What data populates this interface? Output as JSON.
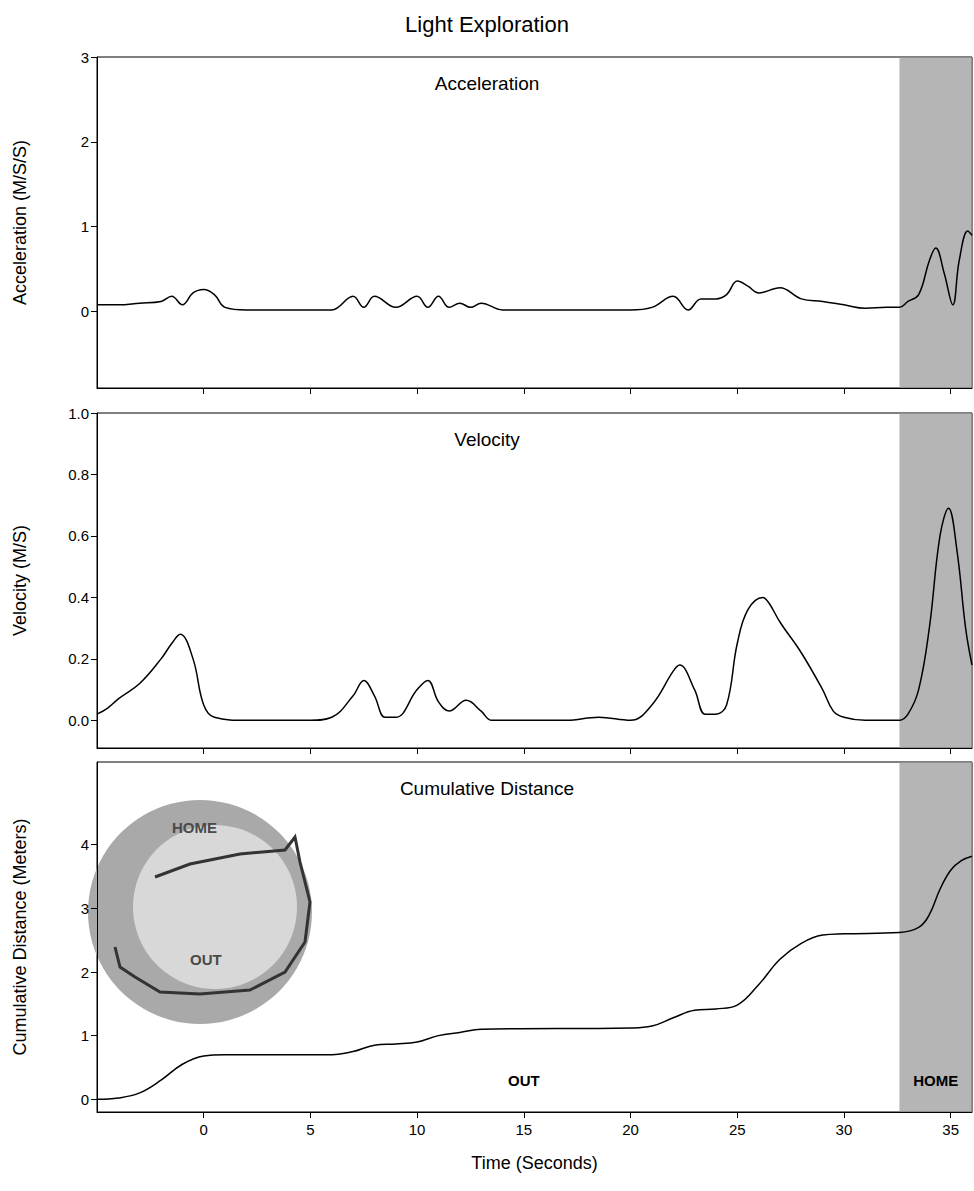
{
  "title": "Light Exploration",
  "chart_data": [
    {
      "type": "line",
      "title": "Acceleration",
      "y_label": "Acceleration (M/S/S)",
      "color": "#000000",
      "grid": false,
      "tick_labels": "y",
      "x": [
        -5,
        -4,
        -3,
        -2,
        -1.5,
        -1,
        -0.5,
        0,
        0.5,
        1,
        2,
        5,
        6,
        7,
        7.5,
        8,
        9,
        10,
        10.5,
        11,
        11.5,
        12,
        12.5,
        13,
        14,
        20,
        21,
        22,
        22.7,
        23.3,
        24,
        24.5,
        25,
        25.5,
        26,
        27,
        28,
        29,
        30,
        31,
        32,
        32.6,
        33,
        33.5,
        34,
        34.3,
        34.7,
        35.1,
        35.4,
        35.8,
        36
      ],
      "values": [
        0.08,
        0.08,
        0.1,
        0.12,
        0.18,
        0.08,
        0.22,
        0.26,
        0.2,
        0.05,
        0.02,
        0.02,
        0.02,
        0.18,
        0.05,
        0.18,
        0.05,
        0.18,
        0.05,
        0.18,
        0.05,
        0.1,
        0.05,
        0.1,
        0.02,
        0.02,
        0.05,
        0.18,
        0.02,
        0.15,
        0.15,
        0.2,
        0.36,
        0.3,
        0.22,
        0.28,
        0.15,
        0.12,
        0.08,
        0.04,
        0.05,
        0.05,
        0.12,
        0.2,
        0.6,
        0.75,
        0.45,
        0.08,
        0.6,
        0.95,
        0.9
      ],
      "xlim": [
        -5,
        36
      ],
      "xticks": [
        0,
        5,
        10,
        15,
        20,
        25,
        30,
        35
      ],
      "ylim": [
        -0.9,
        3
      ],
      "yticks": [
        0,
        1,
        2,
        3
      ],
      "shaded": {
        "from": 32.6,
        "to": 36
      }
    },
    {
      "type": "line",
      "title": "Velocity",
      "y_label": "Velocity (M/S)",
      "color": "#000000",
      "grid": false,
      "tick_labels": "y",
      "x": [
        -5,
        -4.5,
        -4,
        -3,
        -2,
        -1.5,
        -1.1,
        -0.5,
        0,
        0.5,
        2,
        5,
        6,
        7,
        7.5,
        8,
        8.5,
        9,
        10,
        10.5,
        11,
        11.5,
        12.3,
        13,
        13.5,
        17,
        18.5,
        20,
        21,
        22,
        22.3,
        23,
        23.5,
        24,
        24.5,
        25,
        25.5,
        26.2,
        26.5,
        27,
        28,
        29,
        29.5,
        30,
        31,
        32.6,
        33,
        33.5,
        34,
        34.5,
        34.9,
        35.3,
        35.7,
        36
      ],
      "values": [
        0.02,
        0.04,
        0.07,
        0.12,
        0.2,
        0.25,
        0.28,
        0.2,
        0.05,
        0.01,
        0.0,
        0.0,
        0.01,
        0.08,
        0.13,
        0.08,
        0.01,
        0.01,
        0.1,
        0.13,
        0.06,
        0.03,
        0.065,
        0.03,
        0.0,
        0.0,
        0.01,
        0.0,
        0.05,
        0.16,
        0.18,
        0.1,
        0.02,
        0.02,
        0.05,
        0.25,
        0.36,
        0.4,
        0.38,
        0.32,
        0.22,
        0.1,
        0.03,
        0.01,
        0.0,
        0.0,
        0.02,
        0.1,
        0.3,
        0.6,
        0.69,
        0.55,
        0.3,
        0.18
      ],
      "xlim": [
        -5,
        36
      ],
      "xticks": [
        0,
        5,
        10,
        15,
        20,
        25,
        30,
        35
      ],
      "ylim": [
        -0.09,
        1.0
      ],
      "yticks": [
        {
          "value": 0,
          "label": "0.0"
        },
        {
          "value": 0.2,
          "label": "0.2"
        },
        {
          "value": 0.4,
          "label": "0.4"
        },
        {
          "value": 0.6,
          "label": "0.6"
        },
        {
          "value": 0.8,
          "label": "0.8"
        },
        {
          "value": 1.0,
          "label": "1.0"
        }
      ],
      "shaded": {
        "from": 32.6,
        "to": 36
      }
    },
    {
      "type": "line",
      "title": "Cumulative Distance",
      "y_label": "Cumulative Distance (Meters)",
      "x_label": "Time (Seconds)",
      "color": "#000000",
      "grid": false,
      "x": [
        -5,
        -4,
        -3,
        -2,
        -1,
        0,
        1,
        6,
        7,
        8,
        9,
        10,
        11,
        12,
        13,
        20,
        21,
        22,
        23,
        24,
        25,
        26,
        27,
        28,
        29,
        30,
        32.6,
        33.5,
        34,
        34.5,
        35,
        35.5,
        36
      ],
      "values": [
        0,
        0.02,
        0.1,
        0.3,
        0.55,
        0.68,
        0.7,
        0.7,
        0.75,
        0.85,
        0.87,
        0.9,
        1.0,
        1.05,
        1.1,
        1.12,
        1.15,
        1.28,
        1.4,
        1.42,
        1.48,
        1.8,
        2.2,
        2.45,
        2.58,
        2.6,
        2.62,
        2.7,
        2.9,
        3.3,
        3.6,
        3.75,
        3.82
      ],
      "xlim": [
        -5,
        36
      ],
      "xticks": [
        0,
        5,
        10,
        15,
        20,
        25,
        30,
        35
      ],
      "ylim": [
        -0.2,
        5.3
      ],
      "yticks": [
        0,
        1,
        2,
        3,
        4
      ],
      "shaded": {
        "from": 32.6,
        "to": 36
      },
      "annotations": [
        {
          "text": "OUT",
          "x": 15,
          "y": 0.3
        },
        {
          "text": "HOME",
          "x": 34.3,
          "y": 0.3
        }
      ],
      "inset_labels": [
        "HOME",
        "OUT"
      ]
    }
  ]
}
